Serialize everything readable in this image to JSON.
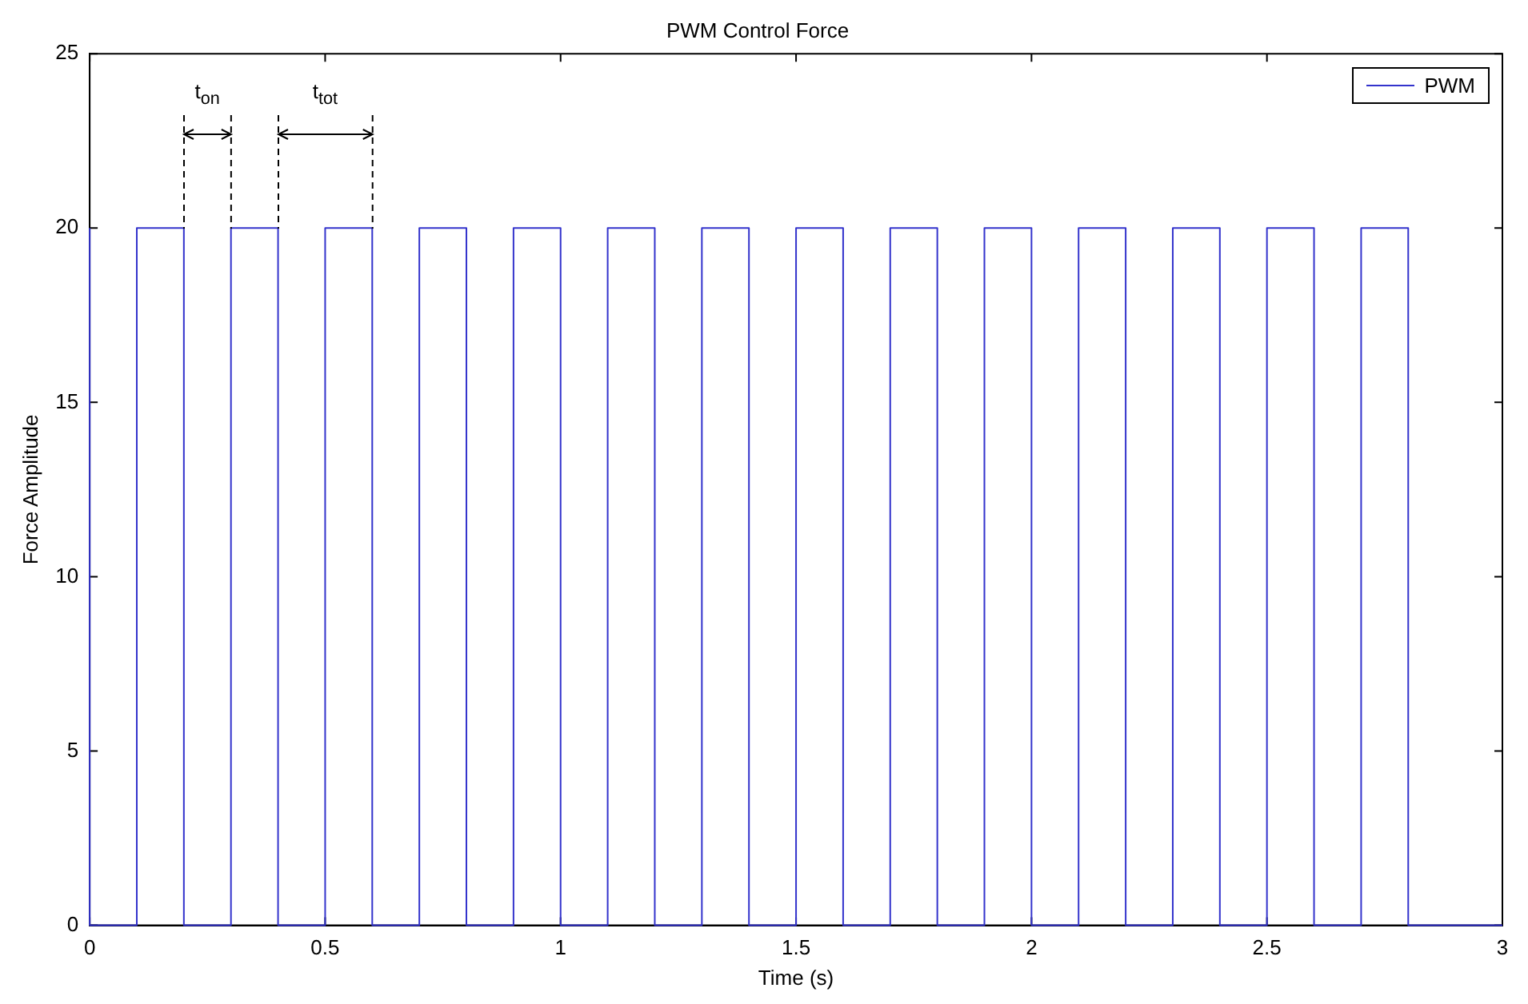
{
  "chart_data": {
    "type": "step",
    "title": "PWM Control Force",
    "xlabel": "Time (s)",
    "ylabel": "Force Amplitude",
    "x": [
      0,
      0.1,
      0.2,
      0.3,
      0.4,
      0.5,
      0.6,
      0.7,
      0.8,
      0.9,
      1,
      1.1,
      1.2,
      1.3,
      1.4,
      1.5,
      1.6,
      1.7,
      1.8,
      1.9,
      2,
      2.1,
      2.2,
      2.3,
      2.4,
      2.5,
      2.6,
      2.7,
      2.8,
      2.9,
      3
    ],
    "series": [
      {
        "name": "PWM",
        "color": "#3333cc",
        "values": [
          20,
          0,
          20,
          0,
          20,
          0,
          20,
          0,
          20,
          0,
          20,
          0,
          20,
          0,
          20,
          0,
          20,
          0,
          20,
          0,
          20,
          0,
          20,
          0,
          20,
          0,
          20,
          0,
          20,
          0,
          0
        ]
      }
    ],
    "xlim": [
      0,
      3
    ],
    "xticks": [
      0,
      0.5,
      1,
      1.5,
      2,
      2.5,
      3
    ],
    "ylim": [
      0,
      25
    ],
    "yticks": [
      0,
      5,
      10,
      15,
      20,
      25
    ],
    "grid": false,
    "legend": "top right",
    "line_style": "solid",
    "marker": "none",
    "annotations": [
      {
        "text": "t$_{on}$",
        "x": 0.2,
        "y": 20
      },
      "t$_{tot}$"
    ]
  }
}
